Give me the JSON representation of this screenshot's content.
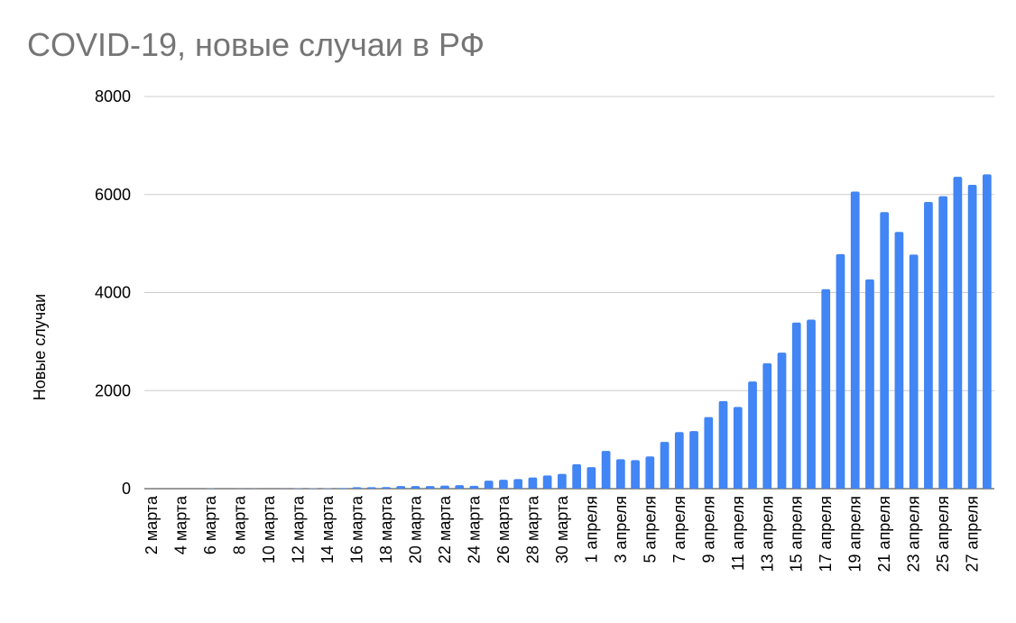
{
  "chart_data": {
    "type": "bar",
    "title": "COVID-19, новые случаи в РФ",
    "y_label": "Новые случаи",
    "categories": [
      "2 марта",
      null,
      "4 марта",
      null,
      "6 марта",
      null,
      "8 марта",
      null,
      "10 марта",
      null,
      "12 марта",
      null,
      "14 марта",
      null,
      "16 марта",
      null,
      "18 марта",
      null,
      "20 марта",
      null,
      "22 марта",
      null,
      "24 марта",
      null,
      "26 марта",
      null,
      "28 марта",
      null,
      "30 марта",
      null,
      "1 апреля",
      null,
      "3 апреля",
      null,
      "5 апреля",
      null,
      "7 апреля",
      null,
      "9 апреля",
      null,
      "11 апреля",
      null,
      "13 апреля",
      null,
      "15 апреля",
      null,
      "17 апреля",
      null,
      "19 апреля",
      null,
      "21 апреля",
      null,
      "23 апреля",
      null,
      "25 апреля",
      null,
      "27 апреля",
      null
    ],
    "values": [
      0,
      0,
      0,
      0,
      4,
      0,
      3,
      3,
      0,
      3,
      8,
      6,
      6,
      14,
      29,
      30,
      33,
      52,
      54,
      53,
      61,
      71,
      57,
      163,
      182,
      196,
      228,
      270,
      302,
      500,
      440,
      771,
      601,
      582,
      658,
      954,
      1154,
      1175,
      1459,
      1786,
      1667,
      2186,
      2558,
      2774,
      3388,
      3448,
      4070,
      4785,
      6060,
      4268,
      5642,
      5236,
      4774,
      5849,
      5966,
      6361,
      6198,
      6411
    ],
    "color": "#4285f4",
    "ylim": [
      0,
      8000
    ],
    "yticks": [
      0,
      2000,
      4000,
      6000,
      8000
    ],
    "grid": true
  }
}
